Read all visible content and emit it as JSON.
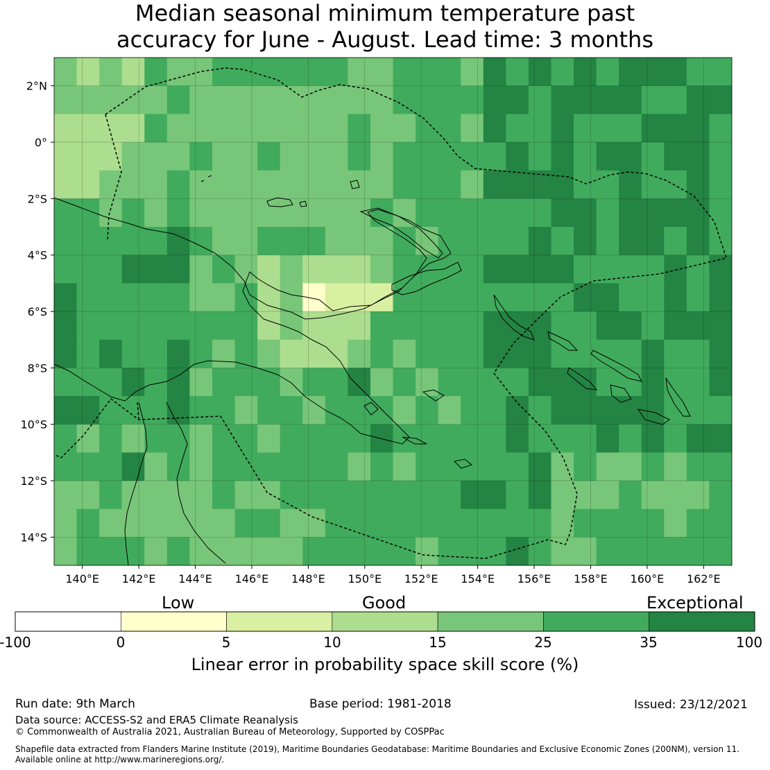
{
  "title": {
    "line1": "Median seasonal minimum temperature past",
    "line2": "accuracy for June - August. Lead time: 3 months"
  },
  "map": {
    "lon_range": [
      139,
      163
    ],
    "lat_range": [
      -15,
      3
    ],
    "lat_ticks": [
      "2°N",
      "0°",
      "2°S",
      "4°S",
      "6°S",
      "8°S",
      "10°S",
      "12°S",
      "14°S"
    ],
    "lon_ticks": [
      "140°E",
      "142°E",
      "144°E",
      "146°E",
      "148°E",
      "150°E",
      "152°E",
      "154°E",
      "156°E",
      "158°E",
      "160°E",
      "162°E"
    ],
    "colors": {
      "lt0": "#ffffff",
      "c0_5": "#ffffcc",
      "c5_10": "#d9f0a3",
      "c10_15": "#addd8e",
      "c15_25": "#78c679",
      "c25_35": "#41ab5d",
      "c35_100": "#238443"
    }
  },
  "colorbar": {
    "categories": [
      "Low",
      "Good",
      "Exceptional"
    ],
    "boundaries": [
      "-100",
      "0",
      "5",
      "10",
      "15",
      "25",
      "35",
      "100"
    ],
    "label": "Linear error in probability space skill score (%)"
  },
  "footer": {
    "run_date": "Run date: 9th March",
    "base_period": "Base period: 1981-2018",
    "issued": "Issued: 23/12/2021",
    "data_source": "Data source: ACCESS-S2 and ERA5 Climate Reanalysis",
    "copyright": "© Commonwealth of Australia 2021, Australian Bureau of Meteorology, Supported by COSPPac",
    "shapefile1": "Shapefile data extracted from Flanders Marine Institute (2019), Maritime Boundaries Geodatabase: Maritime Boundaries and Exclusive Economic Zones (200NM), version 11.",
    "shapefile2": "Available online at http://www.marineregions.org/."
  }
}
